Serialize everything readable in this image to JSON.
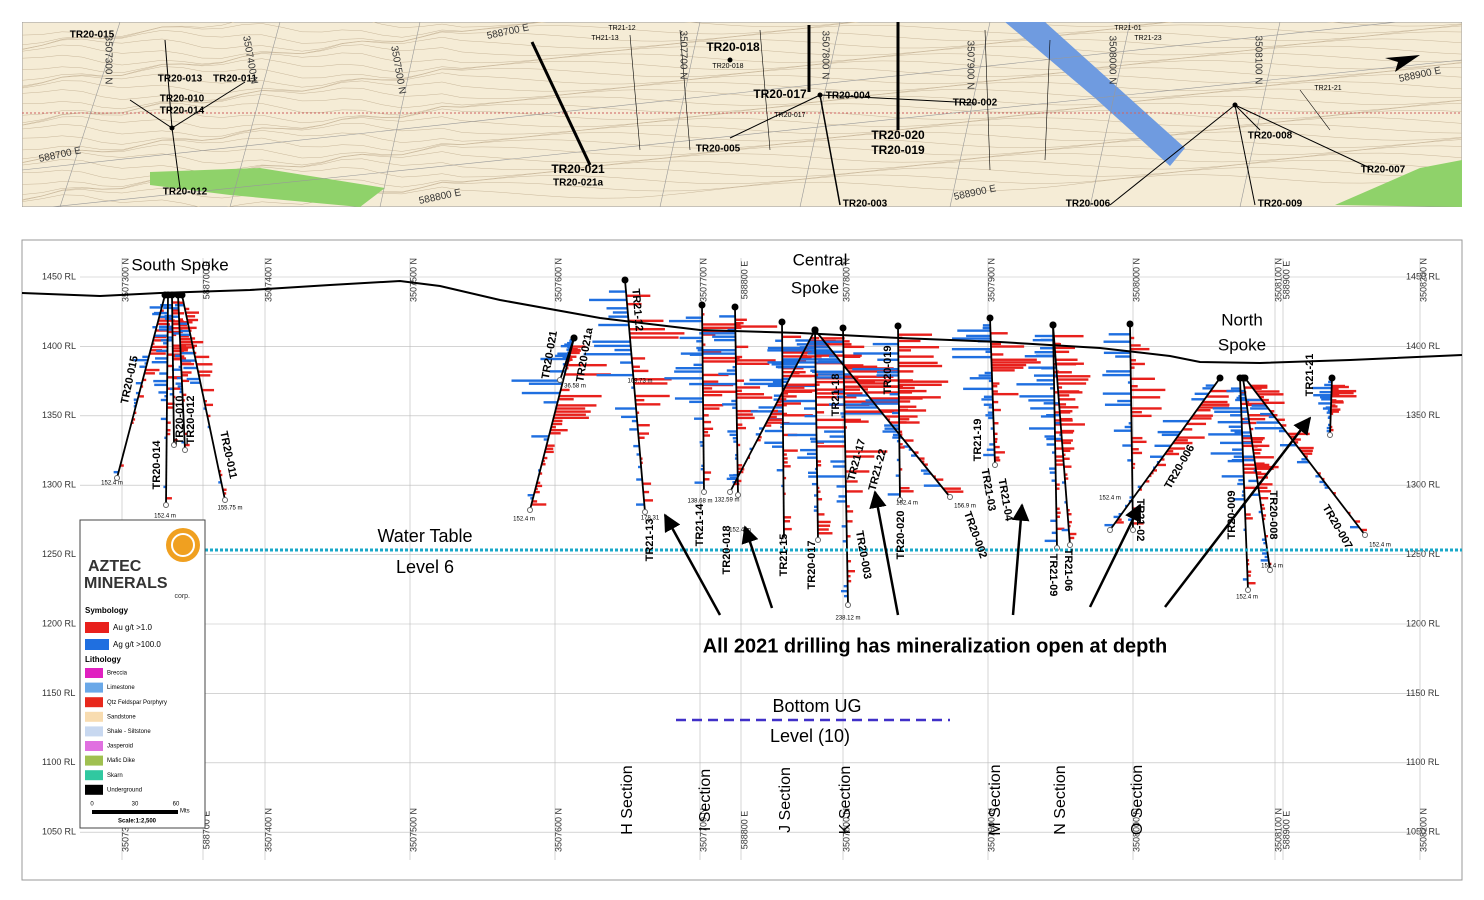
{
  "plan_map": {
    "hole_labels": [
      "TR20-015",
      "TR20-013",
      "TR20-011",
      "TR20-010",
      "TR20-014",
      "TR20-012",
      "TR20-021",
      "TR20-021a",
      "TR20-018",
      "TR20-017",
      "TR20-004",
      "TR20-005",
      "TR20-002",
      "TR20-020",
      "TR20-019",
      "TR20-003",
      "TR20-006",
      "TR20-009",
      "TR20-008",
      "TR20-007",
      "TR21-12",
      "TH21-13",
      "TR21-01",
      "TR21-23",
      "TR21-21",
      "TR20-018",
      "TR20-017"
    ],
    "grid_labels": [
      "3507300 N",
      "3507400 N",
      "3507500 N",
      "3507700 N",
      "3507800 N",
      "3507900 N",
      "3508000 N",
      "3508100 N",
      "588700 E",
      "588700 E",
      "588800 E",
      "588900 E",
      "588900 E"
    ]
  },
  "section": {
    "rl_labels": [
      "1450 RL",
      "1400 RL",
      "1350 RL",
      "1300 RL",
      "1250 RL",
      "1200 RL",
      "1150 RL",
      "1100 RL",
      "1050 RL"
    ],
    "grid_labels": [
      "3507300 N",
      "588700 E",
      "3507400 N",
      "3507500 N",
      "3507600 N",
      "3507700 N",
      "588800 E",
      "3507800 N",
      "3507900 N",
      "3508000 N",
      "3508100 N",
      "588900 E",
      "3508200 N"
    ],
    "spokes": [
      [
        "South Spoke"
      ],
      [
        "Central",
        "Spoke"
      ],
      [
        "North",
        "Spoke"
      ]
    ],
    "water_table": [
      "Water Table",
      "Level 6"
    ],
    "bottom_ug": [
      "Bottom UG",
      "Level (10)"
    ],
    "callout": "All 2021 drilling has mineralization open at depth",
    "section_labels": [
      "H Section",
      "I Section",
      "J Section",
      "K Section",
      "M Section",
      "N Section",
      "O Section"
    ],
    "hole_labels": [
      "TR20-015",
      "TR20-014",
      "TR20-010",
      "TR20-012",
      "TR20-011",
      "TR20-021",
      "TR20-021a",
      "TR21-12",
      "TR21-13",
      "TR21-14",
      "TR20-018",
      "TR21-15",
      "TR20-017",
      "TR21-18",
      "TR21-17",
      "TR21-22",
      "TR20-003",
      "TR20-020",
      "TR20-019",
      "TR20-002",
      "TR21-19",
      "TR21-03",
      "TR21-04",
      "TR21-06",
      "TR21-09",
      "TR21-02",
      "TR20-006",
      "TR20-009",
      "TR20-008",
      "TR20-007",
      "TR21-21"
    ],
    "depth_labels": [
      "152.4 m",
      "152.4 m",
      "155.75 m",
      "152.4 m",
      "36.58 m",
      "109.73 m",
      "178.31",
      "138.68 m",
      "132.59 m",
      "152.4 m",
      "238.12 m",
      "152.4 m",
      "156.9 m",
      "152.4 m",
      "152.4 m",
      "152.4 m",
      "152.4 m"
    ]
  },
  "legend": {
    "company": [
      "AZTEC",
      "MINERALS",
      "corp."
    ],
    "symbology_title": "Symbology",
    "symbology": [
      "Au g/t >1.0",
      "Ag g/t >100.0"
    ],
    "lithology_title": "Lithology",
    "lithology": [
      "Breccia",
      "Limestone",
      "Qtz Feldspar Porphyry",
      "Sandstone",
      "Shale - Siltstone",
      "Jasperoid",
      "Mafic Dike",
      "Skarn",
      "Underground"
    ],
    "scale_ticks": [
      "0",
      "30",
      "60"
    ],
    "scale_unit": "Mts",
    "scale": "Scale:1:2,500"
  }
}
